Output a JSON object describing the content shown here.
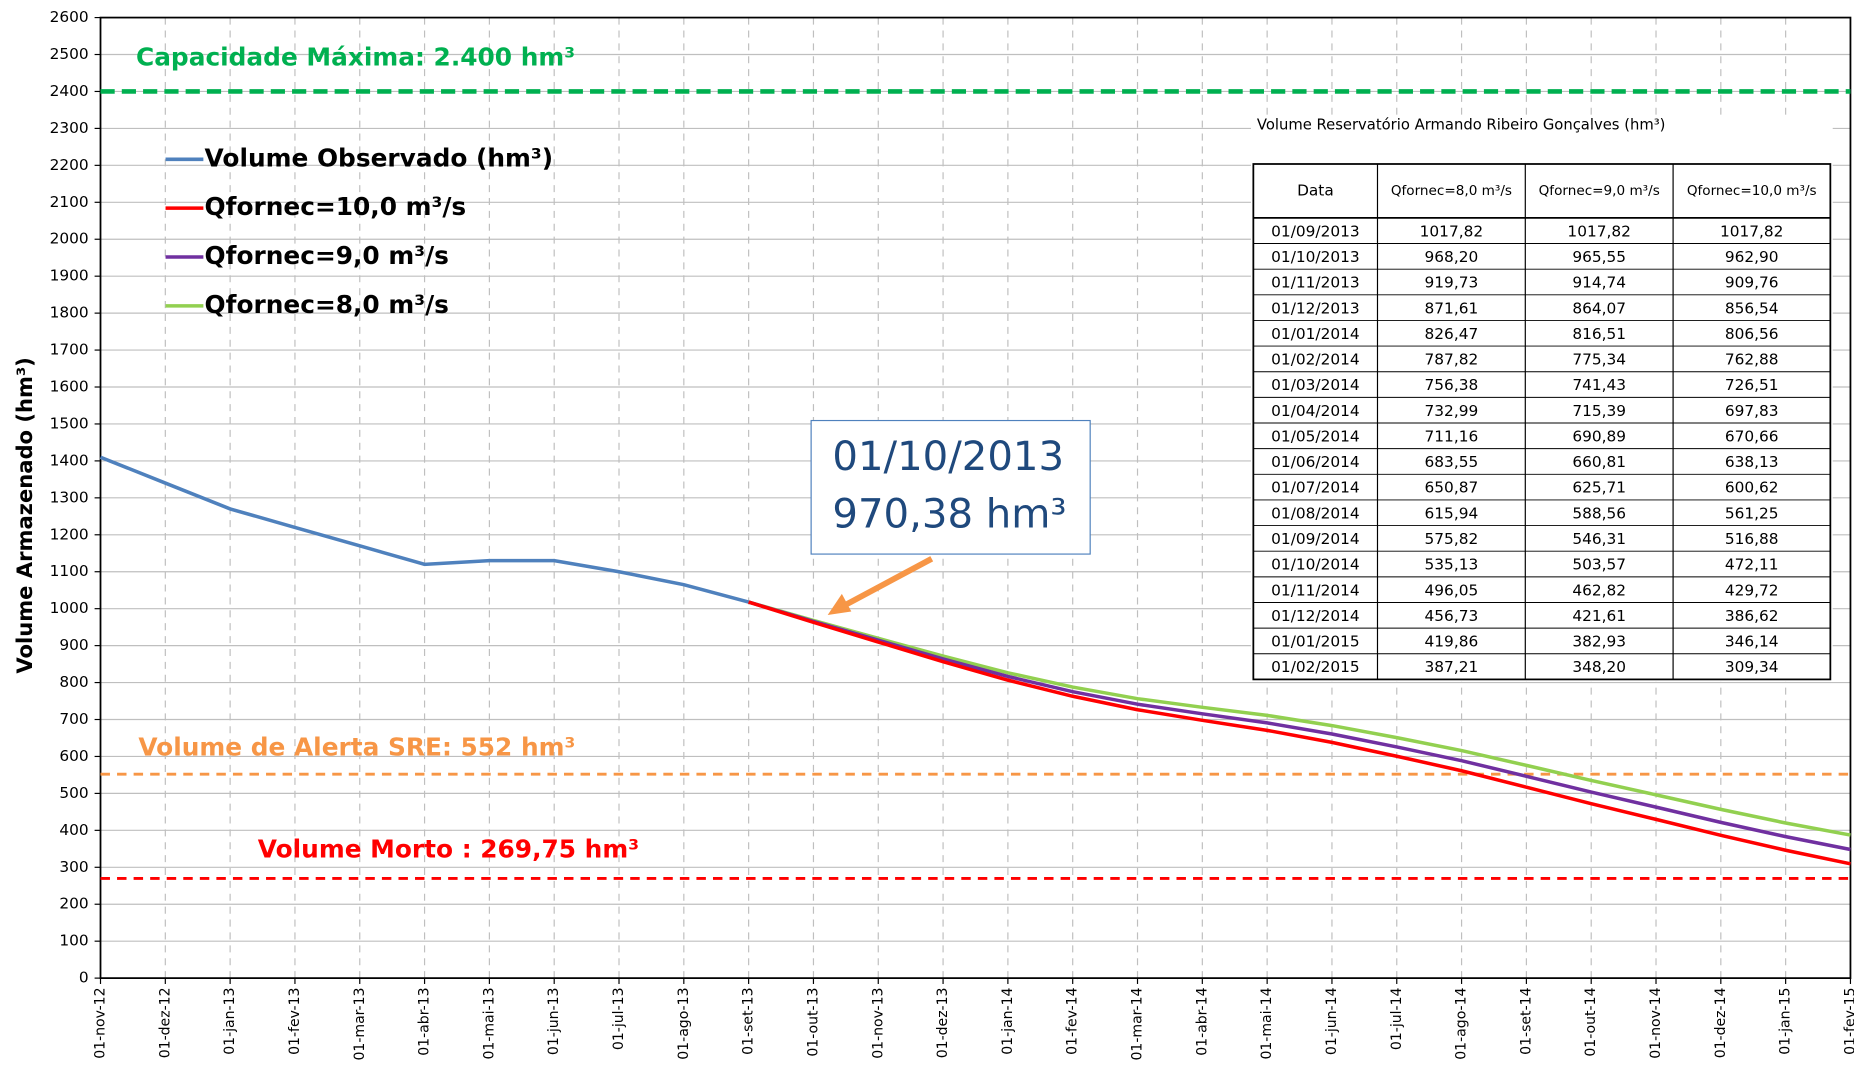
{
  "chart_data": {
    "type": "line",
    "y_label": "Volume  Armazenado (hm³)",
    "categories": [
      "01-nov-12",
      "01-dez-12",
      "01-jan-13",
      "01-fev-13",
      "01-mar-13",
      "01-abr-13",
      "01-mai-13",
      "01-jun-13",
      "01-jul-13",
      "01-ago-13",
      "01-set-13",
      "01-out-13",
      "01-nov-13",
      "01-dez-13",
      "01-jan-14",
      "01-fev-14",
      "01-mar-14",
      "01-abr-14",
      "01-mai-14",
      "01-jun-14",
      "01-jul-14",
      "01-ago-14",
      "01-set-14",
      "01-out-14",
      "01-nov-14",
      "01-dez-14",
      "01-jan-15",
      "01-fev-15"
    ],
    "series": [
      {
        "name": "Volume Observado (hm³)",
        "color": "#4f81bd",
        "values": [
          1410,
          1340,
          1270,
          1220,
          1170,
          1120,
          1130,
          1130,
          1100,
          1065,
          1017.82,
          null,
          null,
          null,
          null,
          null,
          null,
          null,
          null,
          null,
          null,
          null,
          null,
          null,
          null,
          null,
          null,
          null
        ]
      },
      {
        "name": "Qfornec=10,0 m³/s",
        "color": "#ff0000",
        "values": [
          null,
          null,
          null,
          null,
          null,
          null,
          null,
          null,
          null,
          null,
          1017.82,
          962.9,
          909.76,
          856.54,
          806.56,
          762.88,
          726.51,
          697.83,
          670.66,
          638.13,
          600.62,
          561.25,
          516.88,
          472.11,
          429.72,
          386.62,
          346.14,
          309.34
        ]
      },
      {
        "name": "Qfornec=9,0 m³/s",
        "color": "#7030a0",
        "values": [
          null,
          null,
          null,
          null,
          null,
          null,
          null,
          null,
          null,
          null,
          1017.82,
          965.55,
          914.74,
          864.07,
          816.51,
          775.34,
          741.43,
          715.39,
          690.89,
          660.81,
          625.71,
          588.56,
          546.31,
          503.57,
          462.82,
          421.61,
          382.93,
          348.2
        ]
      },
      {
        "name": "Qfornec=8,0 m³/s",
        "color": "#92d050",
        "values": [
          null,
          null,
          null,
          null,
          null,
          null,
          null,
          null,
          null,
          null,
          1017.82,
          968.2,
          919.73,
          871.61,
          826.47,
          787.82,
          756.38,
          732.99,
          711.16,
          683.55,
          650.87,
          615.94,
          575.82,
          535.13,
          496.05,
          456.73,
          419.86,
          387.21
        ]
      }
    ],
    "ylim": [
      0,
      2600
    ],
    "yticks": [
      0,
      100,
      200,
      300,
      400,
      500,
      600,
      700,
      800,
      900,
      1000,
      1100,
      1200,
      1300,
      1400,
      1500,
      1600,
      1700,
      1800,
      1900,
      2000,
      2100,
      2200,
      2300,
      2400,
      2500,
      2600
    ],
    "grid": true,
    "reference_lines": [
      {
        "value": 2400,
        "label": "Capacidade Máxima: 2.400 hm³",
        "color": "#00b050"
      },
      {
        "value": 552,
        "label": "Volume de Alerta SRE: 552 hm³",
        "color": "#f79646"
      },
      {
        "value": 269.75,
        "label": "Volume Morto : 269,75 hm³",
        "color": "#ff0000"
      }
    ],
    "annotation": {
      "lines": [
        "01/10/2013",
        "970,38 hm³"
      ]
    },
    "table": {
      "title": "Volume Reservatório Armando Ribeiro Gonçalves (hm³)",
      "header": [
        "Data",
        "Qfornec=8,0 m³/s",
        "Qfornec=9,0 m³/s",
        "Qfornec=10,0 m³/s"
      ],
      "rows": [
        [
          "01/09/2013",
          "1017,82",
          "1017,82",
          "1017,82"
        ],
        [
          "01/10/2013",
          "968,20",
          "965,55",
          "962,90"
        ],
        [
          "01/11/2013",
          "919,73",
          "914,74",
          "909,76"
        ],
        [
          "01/12/2013",
          "871,61",
          "864,07",
          "856,54"
        ],
        [
          "01/01/2014",
          "826,47",
          "816,51",
          "806,56"
        ],
        [
          "01/02/2014",
          "787,82",
          "775,34",
          "762,88"
        ],
        [
          "01/03/2014",
          "756,38",
          "741,43",
          "726,51"
        ],
        [
          "01/04/2014",
          "732,99",
          "715,39",
          "697,83"
        ],
        [
          "01/05/2014",
          "711,16",
          "690,89",
          "670,66"
        ],
        [
          "01/06/2014",
          "683,55",
          "660,81",
          "638,13"
        ],
        [
          "01/07/2014",
          "650,87",
          "625,71",
          "600,62"
        ],
        [
          "01/08/2014",
          "615,94",
          "588,56",
          "561,25"
        ],
        [
          "01/09/2014",
          "575,82",
          "546,31",
          "516,88"
        ],
        [
          "01/10/2014",
          "535,13",
          "503,57",
          "472,11"
        ],
        [
          "01/11/2014",
          "496,05",
          "462,82",
          "429,72"
        ],
        [
          "01/12/2014",
          "456,73",
          "421,61",
          "386,62"
        ],
        [
          "01/01/2015",
          "419,86",
          "382,93",
          "346,14"
        ],
        [
          "01/02/2015",
          "387,21",
          "348,20",
          "309,34"
        ]
      ]
    }
  }
}
